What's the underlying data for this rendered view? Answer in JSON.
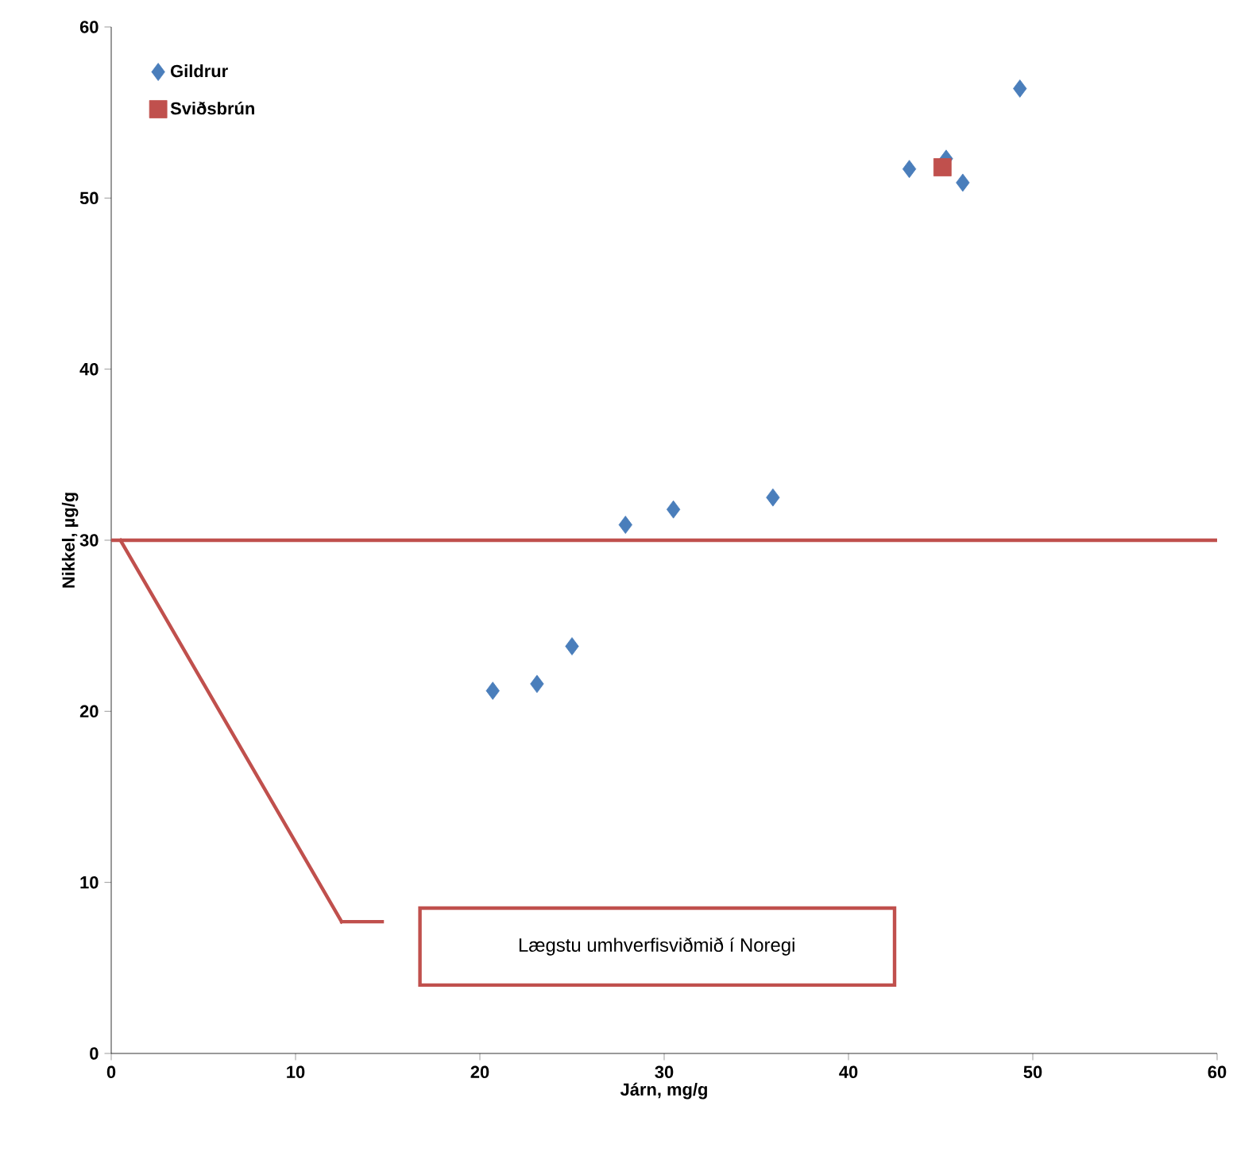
{
  "chart_data": {
    "type": "scatter",
    "xlabel": "Járn, mg/g",
    "ylabel": "Nikkel, µg/g",
    "xlim": [
      0,
      60
    ],
    "ylim": [
      0,
      60
    ],
    "xticks": [
      0,
      10,
      20,
      30,
      40,
      50,
      60
    ],
    "yticks": [
      0,
      10,
      20,
      30,
      40,
      50,
      60
    ],
    "legend": "top left",
    "series": [
      {
        "name": "Gildrur",
        "color": "#4a7ebb",
        "marker": "diamond",
        "x": [
          20.7,
          23.1,
          25.0,
          27.9,
          30.5,
          35.9,
          43.3,
          45.3,
          46.2,
          49.3
        ],
        "values": [
          21.2,
          21.6,
          23.8,
          30.9,
          31.8,
          32.5,
          51.7,
          52.3,
          50.9,
          56.4
        ]
      },
      {
        "name": "Sviðsbrún",
        "color": "#c0504d",
        "marker": "square",
        "x": [
          45.1
        ],
        "values": [
          51.8
        ]
      }
    ],
    "ref_lines": [
      {
        "axis": "y",
        "value": 30,
        "color": "#c0504d"
      }
    ],
    "annotations": [
      "Lægstu umhverfisviðmið  í Noregi"
    ]
  }
}
